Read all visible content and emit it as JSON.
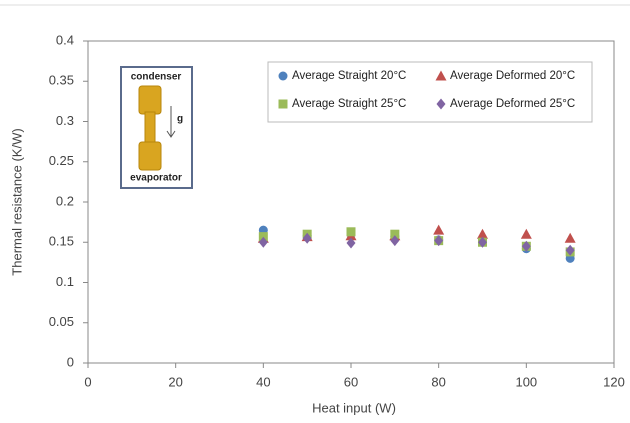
{
  "chart_data": {
    "type": "scatter",
    "xlabel": "Heat input (W)",
    "ylabel": "Thermal resistance (K/W)",
    "x": [
      40,
      50,
      60,
      70,
      80,
      90,
      100,
      110
    ],
    "series": [
      {
        "name": "Average Straight 20°C",
        "color": "#4f81bd",
        "marker": "circle",
        "values": [
          0.165,
          0.158,
          0.16,
          0.157,
          0.153,
          0.15,
          0.142,
          0.13
        ]
      },
      {
        "name": "Average Deformed 20°C",
        "color": "#c0504d",
        "marker": "triangle",
        "values": [
          0.155,
          0.157,
          0.158,
          0.158,
          0.165,
          0.16,
          0.16,
          0.155
        ]
      },
      {
        "name": "Average Straight 25°C",
        "color": "#9bbb59",
        "marker": "square",
        "values": [
          0.157,
          0.16,
          0.163,
          0.16,
          0.152,
          0.15,
          0.145,
          0.138
        ]
      },
      {
        "name": "Average Deformed 25°C",
        "color": "#8064a2",
        "marker": "diamond",
        "values": [
          0.15,
          0.155,
          0.149,
          0.152,
          0.152,
          0.15,
          0.145,
          0.14
        ]
      }
    ],
    "xlim": [
      0,
      120
    ],
    "xticks": [
      0,
      20,
      40,
      60,
      80,
      100,
      120
    ],
    "ylim": [
      0,
      0.4
    ],
    "yticks": [
      0,
      0.05,
      0.1,
      0.15,
      0.2,
      0.25,
      0.3,
      0.35,
      0.4
    ],
    "inset": {
      "top_label": "condenser",
      "arrow_label": "g",
      "bottom_label": "evaporator"
    }
  }
}
